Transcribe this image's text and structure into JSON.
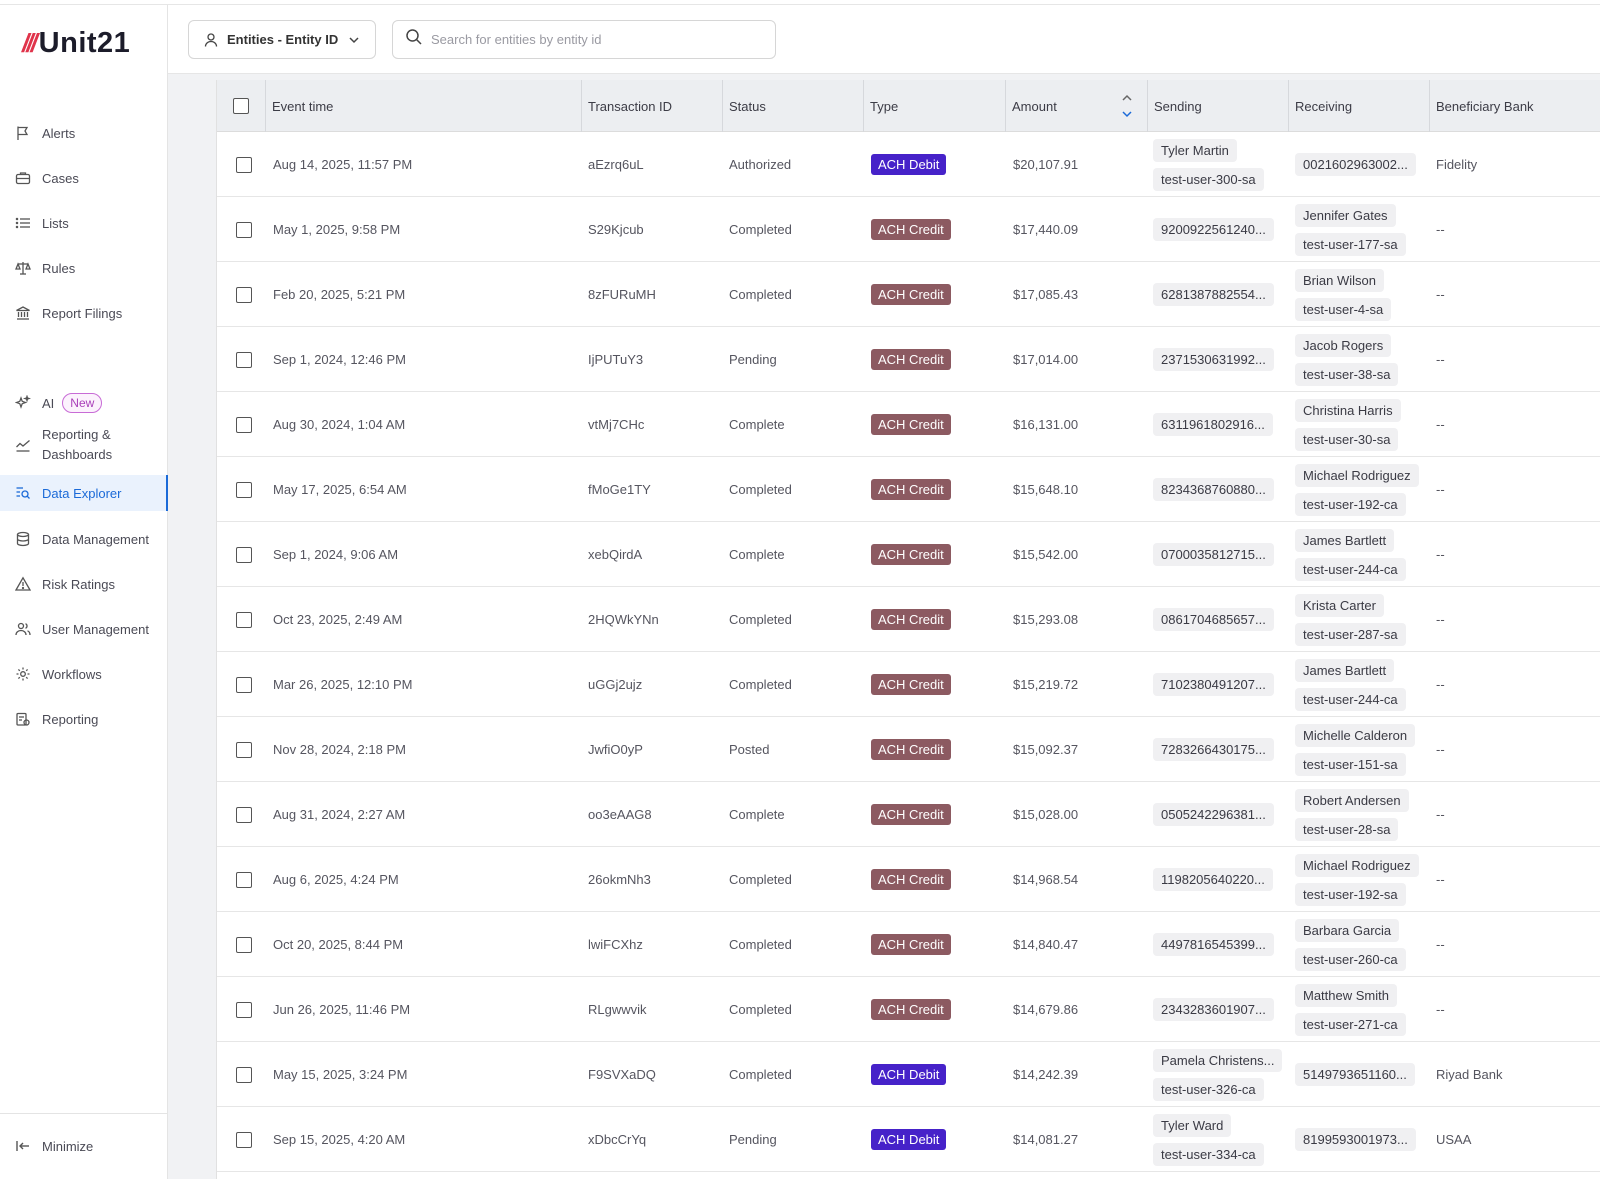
{
  "app": {
    "logo_text": "Unit21"
  },
  "sidebar": {
    "items": [
      {
        "label": "Alerts",
        "icon": "flag-icon"
      },
      {
        "label": "Cases",
        "icon": "briefcase-icon"
      },
      {
        "label": "Lists",
        "icon": "list-icon"
      },
      {
        "label": "Rules",
        "icon": "scale-icon"
      },
      {
        "label": "Report Filings",
        "icon": "building-icon"
      },
      {
        "label": "AI",
        "icon": "sparkle-icon",
        "badge": "New"
      },
      {
        "label": "Reporting &",
        "label2": "Dashboards",
        "icon": "chart-line-icon"
      },
      {
        "label": "Data Explorer",
        "icon": "data-explorer-icon",
        "active": true
      },
      {
        "label": "Data Management",
        "icon": "database-icon"
      },
      {
        "label": "Risk Ratings",
        "icon": "warning-icon"
      },
      {
        "label": "User Management",
        "icon": "users-icon"
      },
      {
        "label": "Workflows",
        "icon": "gear-icon"
      },
      {
        "label": "Reporting",
        "icon": "report-icon"
      }
    ],
    "minimize_label": "Minimize"
  },
  "topbar": {
    "entity_select_label": "Entities - Entity ID",
    "search_placeholder": "Search for entities by entity id"
  },
  "table": {
    "columns": [
      "Event time",
      "Transaction ID",
      "Status",
      "Type",
      "Amount",
      "Sending",
      "Receiving",
      "Beneficiary Bank"
    ],
    "rows": [
      {
        "time": "Aug 14, 2025, 11:57 PM",
        "id": "aEzrq6uL",
        "status": "Authorized",
        "type": "ACH Debit",
        "amount": "$20,107.91",
        "sending": [
          "Tyler Martin",
          "test-user-300-sa"
        ],
        "receiving": [
          "0021602963002..."
        ],
        "bank": "Fidelity"
      },
      {
        "time": "May 1, 2025, 9:58 PM",
        "id": "S29Kjcub",
        "status": "Completed",
        "type": "ACH Credit",
        "amount": "$17,440.09",
        "sending": [
          "9200922561240..."
        ],
        "receiving": [
          "Jennifer Gates",
          "test-user-177-sa"
        ],
        "bank": "--"
      },
      {
        "time": "Feb 20, 2025, 5:21 PM",
        "id": "8zFURuMH",
        "status": "Completed",
        "type": "ACH Credit",
        "amount": "$17,085.43",
        "sending": [
          "6281387882554..."
        ],
        "receiving": [
          "Brian Wilson",
          "test-user-4-sa"
        ],
        "bank": "--"
      },
      {
        "time": "Sep 1, 2024, 12:46 PM",
        "id": "IjPUTuY3",
        "status": "Pending",
        "type": "ACH Credit",
        "amount": "$17,014.00",
        "sending": [
          "2371530631992..."
        ],
        "receiving": [
          "Jacob Rogers",
          "test-user-38-sa"
        ],
        "bank": "--"
      },
      {
        "time": "Aug 30, 2024, 1:04 AM",
        "id": "vtMj7CHc",
        "status": "Complete",
        "type": "ACH Credit",
        "amount": "$16,131.00",
        "sending": [
          "6311961802916..."
        ],
        "receiving": [
          "Christina Harris",
          "test-user-30-sa"
        ],
        "bank": "--"
      },
      {
        "time": "May 17, 2025, 6:54 AM",
        "id": "fMoGe1TY",
        "status": "Completed",
        "type": "ACH Credit",
        "amount": "$15,648.10",
        "sending": [
          "8234368760880..."
        ],
        "receiving": [
          "Michael Rodriguez",
          "test-user-192-ca"
        ],
        "bank": "--"
      },
      {
        "time": "Sep 1, 2024, 9:06 AM",
        "id": "xebQirdA",
        "status": "Complete",
        "type": "ACH Credit",
        "amount": "$15,542.00",
        "sending": [
          "0700035812715..."
        ],
        "receiving": [
          "James Bartlett",
          "test-user-244-ca"
        ],
        "bank": "--"
      },
      {
        "time": "Oct 23, 2025, 2:49 AM",
        "id": "2HQWkYNn",
        "status": "Completed",
        "type": "ACH Credit",
        "amount": "$15,293.08",
        "sending": [
          "0861704685657..."
        ],
        "receiving": [
          "Krista Carter",
          "test-user-287-sa"
        ],
        "bank": "--"
      },
      {
        "time": "Mar 26, 2025, 12:10 PM",
        "id": "uGGj2ujz",
        "status": "Completed",
        "type": "ACH Credit",
        "amount": "$15,219.72",
        "sending": [
          "7102380491207..."
        ],
        "receiving": [
          "James Bartlett",
          "test-user-244-ca"
        ],
        "bank": "--"
      },
      {
        "time": "Nov 28, 2024, 2:18 PM",
        "id": "JwfiO0yP",
        "status": "Posted",
        "type": "ACH Credit",
        "amount": "$15,092.37",
        "sending": [
          "7283266430175..."
        ],
        "receiving": [
          "Michelle Calderon",
          "test-user-151-sa"
        ],
        "bank": "--"
      },
      {
        "time": "Aug 31, 2024, 2:27 AM",
        "id": "oo3eAAG8",
        "status": "Complete",
        "type": "ACH Credit",
        "amount": "$15,028.00",
        "sending": [
          "0505242296381..."
        ],
        "receiving": [
          "Robert Andersen",
          "test-user-28-sa"
        ],
        "bank": "--"
      },
      {
        "time": "Aug 6, 2025, 4:24 PM",
        "id": "26okmNh3",
        "status": "Completed",
        "type": "ACH Credit",
        "amount": "$14,968.54",
        "sending": [
          "1198205640220..."
        ],
        "receiving": [
          "Michael Rodriguez",
          "test-user-192-sa"
        ],
        "bank": "--"
      },
      {
        "time": "Oct 20, 2025, 8:44 PM",
        "id": "lwiFCXhz",
        "status": "Completed",
        "type": "ACH Credit",
        "amount": "$14,840.47",
        "sending": [
          "4497816545399..."
        ],
        "receiving": [
          "Barbara Garcia",
          "test-user-260-ca"
        ],
        "bank": "--"
      },
      {
        "time": "Jun 26, 2025, 11:46 PM",
        "id": "RLgwwvik",
        "status": "Completed",
        "type": "ACH Credit",
        "amount": "$14,679.86",
        "sending": [
          "2343283601907..."
        ],
        "receiving": [
          "Matthew Smith",
          "test-user-271-ca"
        ],
        "bank": "--"
      },
      {
        "time": "May 15, 2025, 3:24 PM",
        "id": "F9SVXaDQ",
        "status": "Completed",
        "type": "ACH Debit",
        "amount": "$14,242.39",
        "sending": [
          "Pamela Christens...",
          "test-user-326-ca"
        ],
        "receiving": [
          "5149793651160..."
        ],
        "bank": "Riyad Bank"
      },
      {
        "time": "Sep 15, 2025, 4:20 AM",
        "id": "xDbcCrYq",
        "status": "Pending",
        "type": "ACH Debit",
        "amount": "$14,081.27",
        "sending": [
          "Tyler Ward",
          "test-user-334-ca"
        ],
        "receiving": [
          "8199593001973..."
        ],
        "bank": "USAA"
      }
    ]
  },
  "colors": {
    "debit": "#4622c9",
    "credit": "#8c5a61",
    "accent": "#1b6ad8",
    "brand": "#e0344b"
  }
}
